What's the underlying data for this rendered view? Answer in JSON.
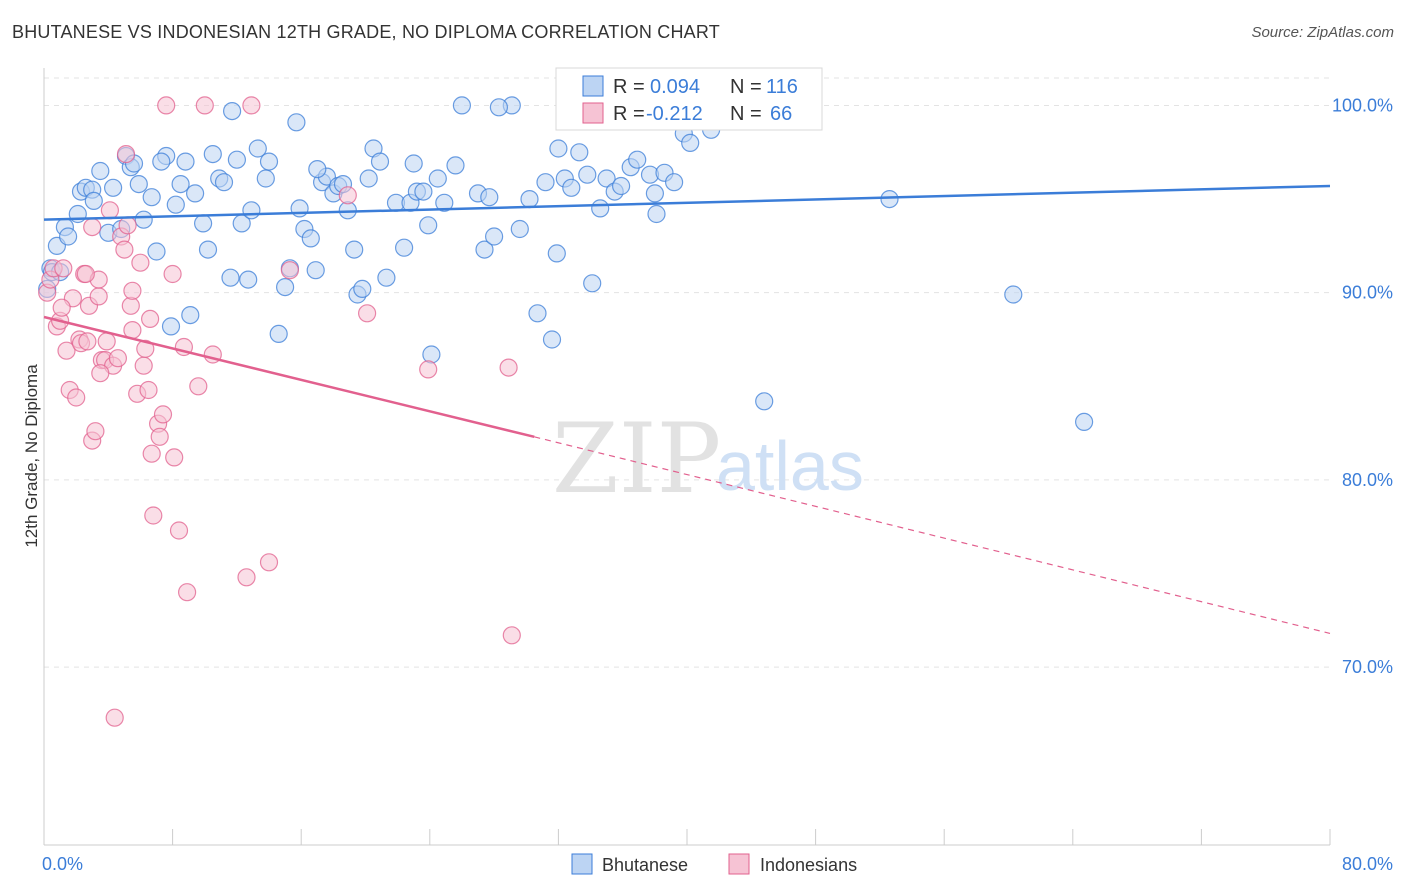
{
  "title": "BHUTANESE VS INDONESIAN 12TH GRADE, NO DIPLOMA CORRELATION CHART",
  "source": "Source: ZipAtlas.com",
  "watermark": {
    "zip": "ZIP",
    "atlas": "atlas"
  },
  "colors": {
    "blue": "#3b7dd8",
    "blue_fill": "#bcd4f3",
    "pink": "#e2608e",
    "pink_fill": "#f6c3d4",
    "grid": "#e3e3e3",
    "axis": "#cccccc"
  },
  "chart_data": {
    "type": "scatter",
    "xlabel": "",
    "ylabel": "12th Grade, No Diploma",
    "xlim": [
      0,
      80
    ],
    "ylim": [
      60.5,
      102
    ],
    "x_tick_labels": [
      "0.0%",
      "80.0%"
    ],
    "y_ticks": [
      70,
      80,
      90,
      100
    ],
    "y_tick_labels": [
      "70.0%",
      "80.0%",
      "90.0%",
      "100.0%"
    ],
    "grid": true,
    "legend_placement": "top-center",
    "legend": [
      {
        "series": "Bhutanese",
        "r_label": "R =",
        "r_value": "0.094",
        "n_label": "N =",
        "n_value": "116"
      },
      {
        "series": "Indonesians",
        "r_label": "R =",
        "r_value": "-0.212",
        "n_label": "N =",
        "n_value": "66"
      }
    ],
    "series": [
      {
        "name": "Bhutanese",
        "color": "#3b7dd8",
        "trend": {
          "x": [
            0,
            80
          ],
          "y": [
            93.9,
            95.7
          ]
        },
        "points": [
          [
            0.2,
            90.2
          ],
          [
            0.4,
            91.3
          ],
          [
            0.5,
            91.1
          ],
          [
            0.8,
            92.5
          ],
          [
            1.0,
            91.1
          ],
          [
            1.3,
            93.5
          ],
          [
            1.5,
            93.0
          ],
          [
            2.1,
            94.2
          ],
          [
            2.3,
            95.4
          ],
          [
            2.6,
            95.6
          ],
          [
            3.0,
            95.5
          ],
          [
            3.1,
            94.9
          ],
          [
            3.5,
            96.5
          ],
          [
            4.0,
            93.2
          ],
          [
            4.3,
            95.6
          ],
          [
            4.8,
            93.4
          ],
          [
            5.1,
            97.3
          ],
          [
            5.4,
            96.7
          ],
          [
            5.6,
            96.9
          ],
          [
            5.9,
            95.8
          ],
          [
            6.2,
            93.9
          ],
          [
            6.7,
            95.1
          ],
          [
            7.0,
            92.2
          ],
          [
            7.6,
            97.3
          ],
          [
            7.9,
            88.2
          ],
          [
            8.2,
            94.7
          ],
          [
            8.5,
            95.8
          ],
          [
            8.8,
            97.0
          ],
          [
            9.1,
            88.8
          ],
          [
            9.4,
            95.3
          ],
          [
            9.9,
            93.7
          ],
          [
            10.2,
            92.3
          ],
          [
            10.5,
            97.4
          ],
          [
            10.9,
            96.1
          ],
          [
            11.2,
            95.9
          ],
          [
            11.6,
            90.8
          ],
          [
            12.0,
            97.1
          ],
          [
            12.3,
            93.7
          ],
          [
            12.7,
            90.7
          ],
          [
            12.9,
            94.4
          ],
          [
            13.3,
            97.7
          ],
          [
            13.8,
            96.1
          ],
          [
            14.0,
            97.0
          ],
          [
            14.6,
            87.8
          ],
          [
            15.0,
            90.3
          ],
          [
            15.3,
            91.3
          ],
          [
            15.7,
            99.1
          ],
          [
            15.9,
            94.5
          ],
          [
            16.2,
            93.4
          ],
          [
            16.6,
            92.9
          ],
          [
            16.9,
            91.2
          ],
          [
            17.3,
            95.9
          ],
          [
            17.6,
            96.2
          ],
          [
            18.0,
            95.3
          ],
          [
            18.3,
            95.7
          ],
          [
            18.6,
            95.8
          ],
          [
            18.9,
            94.4
          ],
          [
            19.3,
            92.3
          ],
          [
            19.5,
            89.9
          ],
          [
            19.8,
            90.2
          ],
          [
            20.2,
            96.1
          ],
          [
            20.5,
            97.7
          ],
          [
            20.9,
            97.0
          ],
          [
            21.3,
            90.8
          ],
          [
            21.9,
            94.8
          ],
          [
            22.4,
            92.4
          ],
          [
            22.8,
            94.8
          ],
          [
            23.2,
            95.4
          ],
          [
            23.6,
            95.4
          ],
          [
            23.9,
            93.6
          ],
          [
            24.1,
            86.7
          ],
          [
            24.5,
            96.1
          ],
          [
            24.9,
            94.8
          ],
          [
            25.6,
            96.8
          ],
          [
            26.0,
            100.0
          ],
          [
            27.0,
            95.3
          ],
          [
            27.4,
            92.3
          ],
          [
            27.7,
            95.1
          ],
          [
            28.0,
            93.0
          ],
          [
            29.1,
            100.0
          ],
          [
            29.6,
            93.4
          ],
          [
            30.2,
            95.0
          ],
          [
            30.7,
            88.9
          ],
          [
            31.2,
            95.9
          ],
          [
            31.6,
            87.5
          ],
          [
            31.9,
            92.1
          ],
          [
            32.4,
            96.1
          ],
          [
            32.8,
            95.6
          ],
          [
            33.3,
            97.5
          ],
          [
            33.8,
            96.3
          ],
          [
            34.1,
            90.5
          ],
          [
            34.6,
            94.5
          ],
          [
            35.0,
            96.1
          ],
          [
            35.5,
            95.4
          ],
          [
            35.9,
            95.7
          ],
          [
            36.5,
            96.7
          ],
          [
            36.9,
            97.1
          ],
          [
            37.7,
            96.3
          ],
          [
            38.0,
            95.3
          ],
          [
            38.1,
            94.2
          ],
          [
            38.6,
            96.4
          ],
          [
            39.2,
            95.9
          ],
          [
            39.8,
            98.5
          ],
          [
            40.2,
            98.0
          ],
          [
            40.9,
            99.9
          ],
          [
            41.5,
            98.7
          ],
          [
            42.3,
            99.8
          ],
          [
            44.8,
            84.2
          ],
          [
            52.6,
            95.0
          ],
          [
            60.3,
            89.9
          ],
          [
            64.7,
            83.1
          ],
          [
            7.3,
            97.0
          ],
          [
            11.7,
            99.7
          ],
          [
            32.0,
            97.7
          ],
          [
            33.2,
            99.5
          ],
          [
            38.7,
            99.7
          ],
          [
            28.3,
            99.9
          ],
          [
            17.0,
            96.6
          ],
          [
            23.0,
            96.9
          ]
        ]
      },
      {
        "name": "Indonesians",
        "color": "#e2608e",
        "trend": {
          "x": [
            0,
            30.5
          ],
          "y": [
            88.7,
            82.3
          ]
        },
        "trend_extension": {
          "x": [
            30.5,
            80
          ],
          "y": [
            82.3,
            71.8
          ]
        },
        "points": [
          [
            0.2,
            90.0
          ],
          [
            0.4,
            90.7
          ],
          [
            0.6,
            91.3
          ],
          [
            0.8,
            88.2
          ],
          [
            1.0,
            88.5
          ],
          [
            1.2,
            91.3
          ],
          [
            1.4,
            86.9
          ],
          [
            1.6,
            84.8
          ],
          [
            1.8,
            89.7
          ],
          [
            2.0,
            84.4
          ],
          [
            2.2,
            87.5
          ],
          [
            2.3,
            87.3
          ],
          [
            2.5,
            91.0
          ],
          [
            2.7,
            87.4
          ],
          [
            2.8,
            89.3
          ],
          [
            3.0,
            93.5
          ],
          [
            3.0,
            82.1
          ],
          [
            3.2,
            82.6
          ],
          [
            3.4,
            89.8
          ],
          [
            3.4,
            90.7
          ],
          [
            3.6,
            86.4
          ],
          [
            3.8,
            86.4
          ],
          [
            3.9,
            87.4
          ],
          [
            4.1,
            94.4
          ],
          [
            4.3,
            86.1
          ],
          [
            4.6,
            86.5
          ],
          [
            4.8,
            93.0
          ],
          [
            5.0,
            92.3
          ],
          [
            5.1,
            97.4
          ],
          [
            5.2,
            93.6
          ],
          [
            5.4,
            89.3
          ],
          [
            5.5,
            90.1
          ],
          [
            5.5,
            88.0
          ],
          [
            5.8,
            84.6
          ],
          [
            6.0,
            91.6
          ],
          [
            6.2,
            86.1
          ],
          [
            6.3,
            87.0
          ],
          [
            6.5,
            84.8
          ],
          [
            6.7,
            81.4
          ],
          [
            6.8,
            78.1
          ],
          [
            7.1,
            83.0
          ],
          [
            7.2,
            82.3
          ],
          [
            7.4,
            83.5
          ],
          [
            7.6,
            100.0
          ],
          [
            8.0,
            91.0
          ],
          [
            8.1,
            81.2
          ],
          [
            8.4,
            77.3
          ],
          [
            8.7,
            87.1
          ],
          [
            8.9,
            74.0
          ],
          [
            9.6,
            85.0
          ],
          [
            10.0,
            100.0
          ],
          [
            10.5,
            86.7
          ],
          [
            12.6,
            74.8
          ],
          [
            12.9,
            100.0
          ],
          [
            14.0,
            75.6
          ],
          [
            15.3,
            91.2
          ],
          [
            18.9,
            95.2
          ],
          [
            20.1,
            88.9
          ],
          [
            23.9,
            85.9
          ],
          [
            28.9,
            86.0
          ],
          [
            29.1,
            71.7
          ],
          [
            4.4,
            67.3
          ],
          [
            2.6,
            91.0
          ],
          [
            1.1,
            89.2
          ],
          [
            3.5,
            85.7
          ],
          [
            6.6,
            88.6
          ]
        ]
      }
    ]
  },
  "bottom_legend": [
    "Bhutanese",
    "Indonesians"
  ]
}
